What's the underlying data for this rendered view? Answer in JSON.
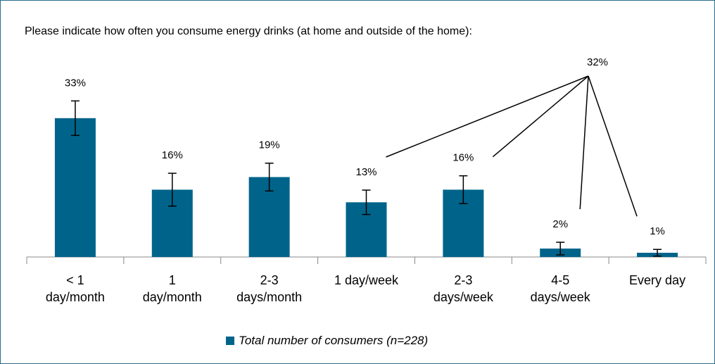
{
  "chart_data": {
    "type": "bar",
    "title": "Please indicate how often you consume energy drinks (at home and outside of the home):",
    "categories": [
      "< 1\nday/month",
      "1\nday/month",
      "2-3\ndays/month",
      "1 day/week",
      "2-3\ndays/week",
      "4-5\ndays/week",
      "Every day"
    ],
    "series": [
      {
        "name": "Total number of consumers (n=228)",
        "color": "#00648a",
        "values": [
          33,
          16,
          19,
          13,
          16,
          2,
          1
        ],
        "value_labels": [
          "33%",
          "16%",
          "19%",
          "13%",
          "16%",
          "2%",
          "1%"
        ],
        "errors": [
          4.1,
          3.9,
          3.3,
          2.9,
          3.3,
          1.5,
          0.8
        ]
      }
    ],
    "ylim": [
      0,
      40
    ],
    "annotation": {
      "text": "32%",
      "categories": [
        3,
        4,
        5,
        6
      ]
    }
  }
}
